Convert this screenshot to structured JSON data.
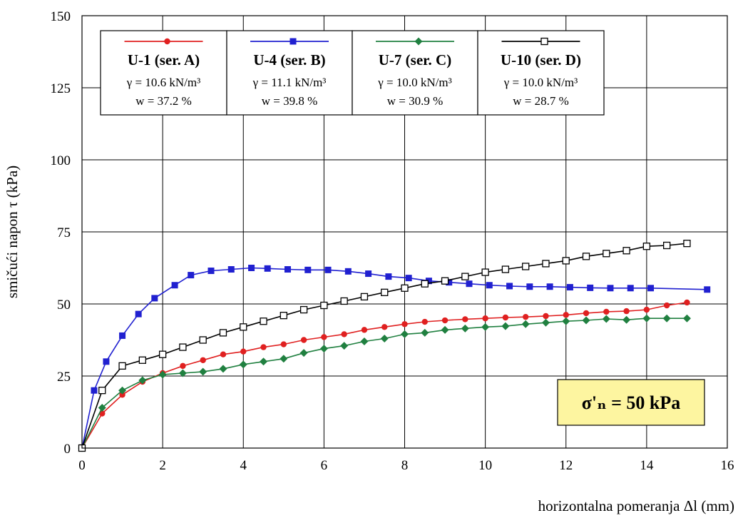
{
  "chart_data": {
    "type": "line",
    "xlabel": "horizontalna pomeranja  Δl  (mm)",
    "ylabel": "smičući napon  τ (kPa)",
    "xlim": [
      0,
      16
    ],
    "ylim": [
      0,
      150
    ],
    "xticks": [
      "0",
      "2",
      "4",
      "6",
      "8",
      "10",
      "12",
      "14",
      "16"
    ],
    "yticks": [
      "0",
      "25",
      "50",
      "75",
      "100",
      "125",
      "150"
    ],
    "grid": true,
    "legend_position": "top-left",
    "series": [
      {
        "name": "U-1 (ser. A)",
        "gamma": "γ = 10.6 kN/m³",
        "w": "w = 37.2 %",
        "color": "#e02020",
        "marker": "circle",
        "x": [
          0,
          0.5,
          1,
          1.5,
          2,
          2.5,
          3,
          3.5,
          4,
          4.5,
          5,
          5.5,
          6,
          6.5,
          7,
          7.5,
          8,
          8.5,
          9,
          9.5,
          10,
          10.5,
          11,
          11.5,
          12,
          12.5,
          13,
          13.5,
          14,
          14.5,
          15
        ],
        "y": [
          0,
          12,
          18.5,
          23,
          26,
          28.5,
          30.5,
          32.5,
          33.5,
          35,
          36,
          37.5,
          38.5,
          39.5,
          41,
          42,
          43,
          43.8,
          44.3,
          44.7,
          45,
          45.3,
          45.5,
          45.8,
          46.2,
          46.8,
          47.3,
          47.5,
          48,
          49.5,
          50.5
        ]
      },
      {
        "name": "U-4 (ser. B)",
        "gamma": "γ = 11.1 kN/m³",
        "w": "w = 39.8 %",
        "color": "#2020d0",
        "marker": "square",
        "x": [
          0,
          0.3,
          0.6,
          1,
          1.4,
          1.8,
          2.3,
          2.7,
          3.2,
          3.7,
          4.2,
          4.6,
          5.1,
          5.6,
          6.1,
          6.6,
          7.1,
          7.6,
          8.1,
          8.6,
          9.1,
          9.6,
          10.1,
          10.6,
          11.1,
          11.6,
          12.1,
          12.6,
          13.1,
          13.6,
          14.1,
          15.5
        ],
        "y": [
          0,
          20,
          30,
          39,
          46.5,
          52,
          56.5,
          60,
          61.5,
          62,
          62.5,
          62.3,
          62,
          61.8,
          61.8,
          61.3,
          60.5,
          59.5,
          59,
          58,
          57.5,
          57,
          56.5,
          56.2,
          56,
          56,
          55.8,
          55.6,
          55.5,
          55.5,
          55.5,
          55
        ]
      },
      {
        "name": "U-7 (ser. C)",
        "gamma": "γ = 10.0 kN/m³",
        "w": "w = 30.9 %",
        "color": "#208040",
        "marker": "diamond",
        "x": [
          0,
          0.5,
          1,
          1.5,
          2,
          2.5,
          3,
          3.5,
          4,
          4.5,
          5,
          5.5,
          6,
          6.5,
          7,
          7.5,
          8,
          8.5,
          9,
          9.5,
          10,
          10.5,
          11,
          11.5,
          12,
          12.5,
          13,
          13.5,
          14,
          14.5,
          15
        ],
        "y": [
          0,
          14,
          20,
          23.5,
          25.5,
          26,
          26.5,
          27.5,
          29,
          30,
          31,
          33,
          34.5,
          35.5,
          37,
          38,
          39.5,
          40,
          41,
          41.5,
          42,
          42.3,
          43,
          43.5,
          44,
          44.3,
          44.8,
          44.5,
          45,
          45,
          45
        ]
      },
      {
        "name": "U-10 (ser. D)",
        "gamma": "γ = 10.0 kN/m³",
        "w": "w = 28.7 %",
        "color": "#000000",
        "marker": "square-open",
        "x": [
          0,
          0.5,
          1,
          1.5,
          2,
          2.5,
          3,
          3.5,
          4,
          4.5,
          5,
          5.5,
          6,
          6.5,
          7,
          7.5,
          8,
          8.5,
          9,
          9.5,
          10,
          10.5,
          11,
          11.5,
          12,
          12.5,
          13,
          13.5,
          14,
          14.5,
          15
        ],
        "y": [
          0,
          20,
          28.5,
          30.5,
          32.5,
          35,
          37.5,
          40,
          42,
          44,
          46,
          48,
          49.5,
          51,
          52.5,
          54,
          55.5,
          57,
          58,
          59.5,
          61,
          62,
          63,
          64,
          65,
          66.5,
          67.5,
          68.5,
          70,
          70.3,
          71
        ]
      }
    ],
    "annotation": {
      "text": "σ'ₙ = 50 kPa",
      "background": "#fdf5a0",
      "position": "bottom-right"
    }
  }
}
